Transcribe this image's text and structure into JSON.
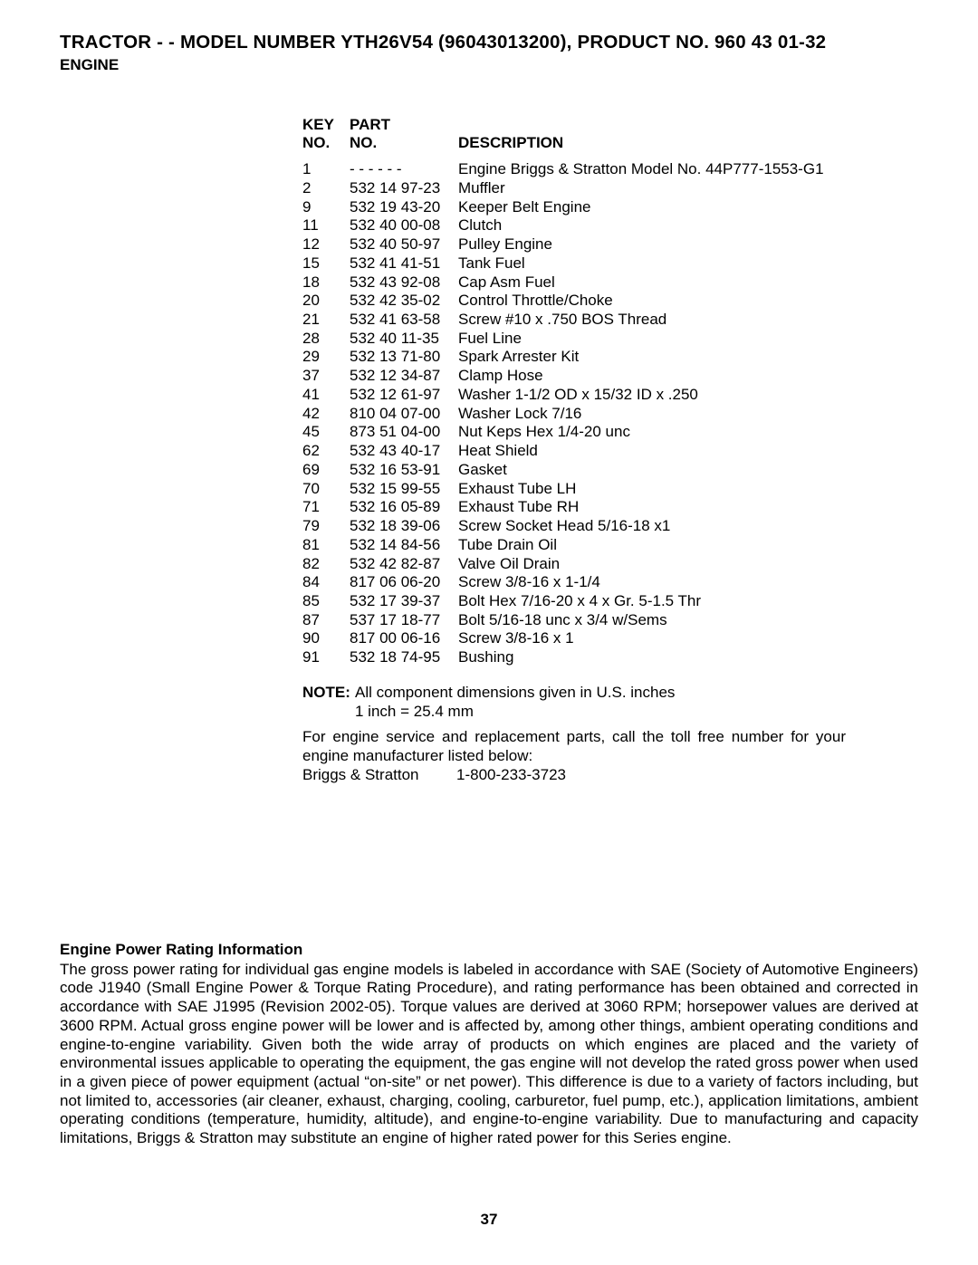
{
  "header": {
    "title": "TRACTOR - - MODEL NUMBER YTH26V54 (96043013200), PRODUCT NO. 960 43 01-32",
    "subtitle": "ENGINE"
  },
  "parts_table": {
    "headers": {
      "key_line1": "KEY",
      "key_line2": "NO.",
      "part_line1": "PART",
      "part_line2": "NO.",
      "desc": "DESCRIPTION"
    },
    "rows": [
      {
        "key": "1",
        "part": "- - - - - -",
        "desc": "Engine Briggs & Stratton Model No. 44P777-1553-G1"
      },
      {
        "key": "2",
        "part": "532 14 97-23",
        "desc": "Muffler"
      },
      {
        "key": "9",
        "part": "532 19 43-20",
        "desc": "Keeper Belt Engine"
      },
      {
        "key": "11",
        "part": "532 40 00-08",
        "desc": "Clutch"
      },
      {
        "key": "12",
        "part": "532 40 50-97",
        "desc": "Pulley Engine"
      },
      {
        "key": "15",
        "part": "532 41 41-51",
        "desc": "Tank Fuel"
      },
      {
        "key": "18",
        "part": "532 43 92-08",
        "desc": "Cap Asm Fuel"
      },
      {
        "key": "20",
        "part": "532 42 35-02",
        "desc": "Control Throttle/Choke"
      },
      {
        "key": "21",
        "part": "532 41 63-58",
        "desc": "Screw #10 x .750 BOS Thread"
      },
      {
        "key": "28",
        "part": "532 40 11-35",
        "desc": "Fuel Line"
      },
      {
        "key": "29",
        "part": "532 13 71-80",
        "desc": "Spark Arrester Kit"
      },
      {
        "key": "37",
        "part": "532 12 34-87",
        "desc": "Clamp Hose"
      },
      {
        "key": "41",
        "part": "532 12 61-97",
        "desc": "Washer 1-1/2 OD x 15/32 ID x .250"
      },
      {
        "key": "42",
        "part": "810 04 07-00",
        "desc": "Washer Lock 7/16"
      },
      {
        "key": "45",
        "part": "873 51 04-00",
        "desc": "Nut Keps Hex 1/4-20 unc"
      },
      {
        "key": "62",
        "part": "532 43 40-17",
        "desc": "Heat Shield"
      },
      {
        "key": "69",
        "part": "532 16 53-91",
        "desc": "Gasket"
      },
      {
        "key": "70",
        "part": "532 15 99-55",
        "desc": "Exhaust Tube LH"
      },
      {
        "key": "71",
        "part": "532 16 05-89",
        "desc": "Exhaust Tube RH"
      },
      {
        "key": "79",
        "part": "532 18 39-06",
        "desc": "Screw Socket Head 5/16-18 x1"
      },
      {
        "key": "81",
        "part": "532 14 84-56",
        "desc": "Tube Drain Oil"
      },
      {
        "key": "82",
        "part": "532 42 82-87",
        "desc": "Valve Oil Drain"
      },
      {
        "key": "84",
        "part": "817 06 06-20",
        "desc": "Screw 3/8-16 x 1-1/4"
      },
      {
        "key": "85",
        "part": "532 17 39-37",
        "desc": "Bolt Hex 7/16-20 x 4 x Gr. 5-1.5 Thr"
      },
      {
        "key": "87",
        "part": "537 17 18-77",
        "desc": "Bolt 5/16-18 unc x 3/4 w/Sems"
      },
      {
        "key": "90",
        "part": "817 00 06-16",
        "desc": "Screw 3/8-16 x 1"
      },
      {
        "key": "91",
        "part": "532 18 74-95",
        "desc": "Bushing"
      }
    ]
  },
  "note": {
    "label": "NOTE:",
    "line1": "All component dimensions given in U.S. inches",
    "line2": "1 inch = 25.4 mm"
  },
  "service": {
    "text": "For engine service and replacement parts, call the toll free number for your engine manufacturer listed below:",
    "mfr": "Briggs & Stratton",
    "phone": "1-800-233-3723"
  },
  "info": {
    "heading": "Engine Power Rating Information",
    "body": "The gross power rating for individual gas engine models is labeled in accordance with SAE (Society of Automotive Engineers) code J1940 (Small Engine Power & Torque Rating Procedure), and rating performance has been obtained and corrected in accordance with SAE J1995 (Revision 2002-05). Torque values are derived at 3060 RPM; horsepower values are derived at 3600 RPM. Actual gross engine power will be lower and is affected by, among other things, ambient operating conditions and engine-to-engine variability. Given both the wide array of products on which engines are placed and the variety of environmental issues applicable to operating the equipment, the gas engine will not develop the rated gross power when used in a given piece of power equipment (actual “on-site” or net power). This difference is due to a variety of factors including, but not limited to, accessories (air cleaner, exhaust, charging, cooling, carburetor, fuel pump, etc.), application limitations, ambient operating conditions (temperature, humidity, altitude), and engine-to-engine variability. Due to manufacturing and capacity limitations, Briggs & Stratton may substitute an engine of higher rated power for this Series engine."
  },
  "page_number": "37"
}
